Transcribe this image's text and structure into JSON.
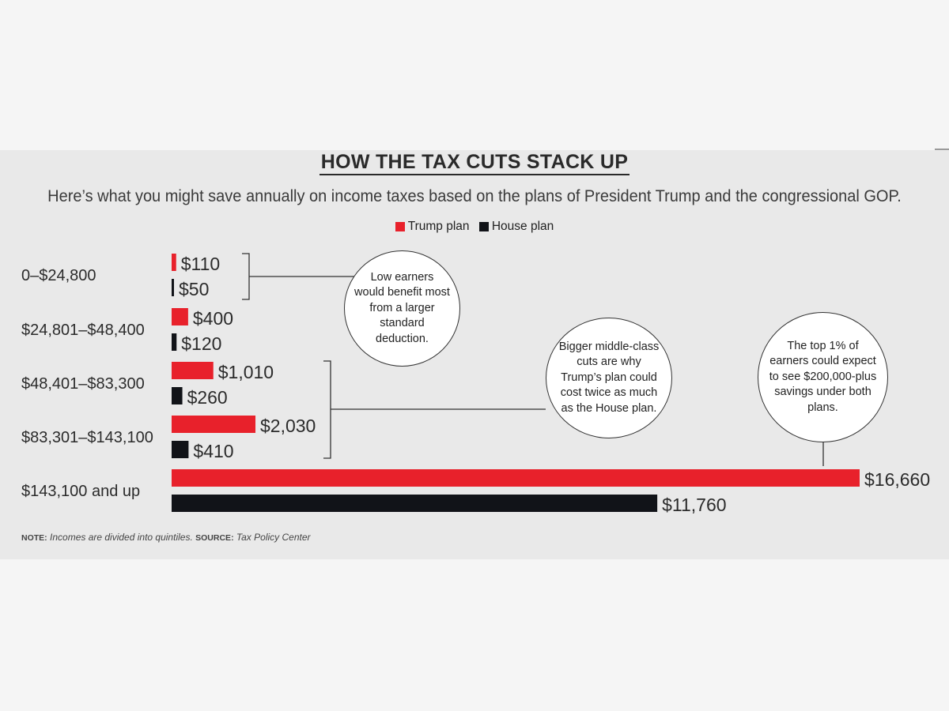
{
  "header": {
    "title": "HOW THE TAX CUTS STACK UP",
    "subtitle": "Here’s what you might save annually on income taxes based on the plans of President Trump and the congressional GOP."
  },
  "legend": {
    "trump": "Trump plan",
    "house": "House plan"
  },
  "colors": {
    "trump": "#e8212b",
    "house": "#111318"
  },
  "chart_data": {
    "type": "bar",
    "orientation": "horizontal",
    "title": "HOW THE TAX CUTS STACK UP",
    "categories": [
      "0–$24,800",
      "$24,801–$48,400",
      "$48,401–$83,300",
      "$83,301–$143,100",
      "$143,100 and up"
    ],
    "series": [
      {
        "name": "Trump plan",
        "values": [
          110,
          400,
          1010,
          2030,
          16660
        ],
        "labels": [
          "$110",
          "$400",
          "$1,010",
          "$2,030",
          "$16,660"
        ]
      },
      {
        "name": "House plan",
        "values": [
          50,
          120,
          260,
          410,
          11760
        ],
        "labels": [
          "$50",
          "$120",
          "$260",
          "$410",
          "$11,760"
        ]
      }
    ],
    "xlim": [
      0,
      16660
    ],
    "grid": false,
    "legend_position": "top-center"
  },
  "callouts": {
    "low": "Low earners would benefit most from a larger standard deduction.",
    "middle": "Bigger middle-class cuts are why Trump’s plan could cost twice as much as the House plan.",
    "top": "The top 1% of earners could expect to see $200,000-plus savings under both plans."
  },
  "note": {
    "note_label": "NOTE:",
    "note_text": "Incomes are divided into quintiles.",
    "source_label": "SOURCE:",
    "source_text": "Tax Policy Center"
  }
}
